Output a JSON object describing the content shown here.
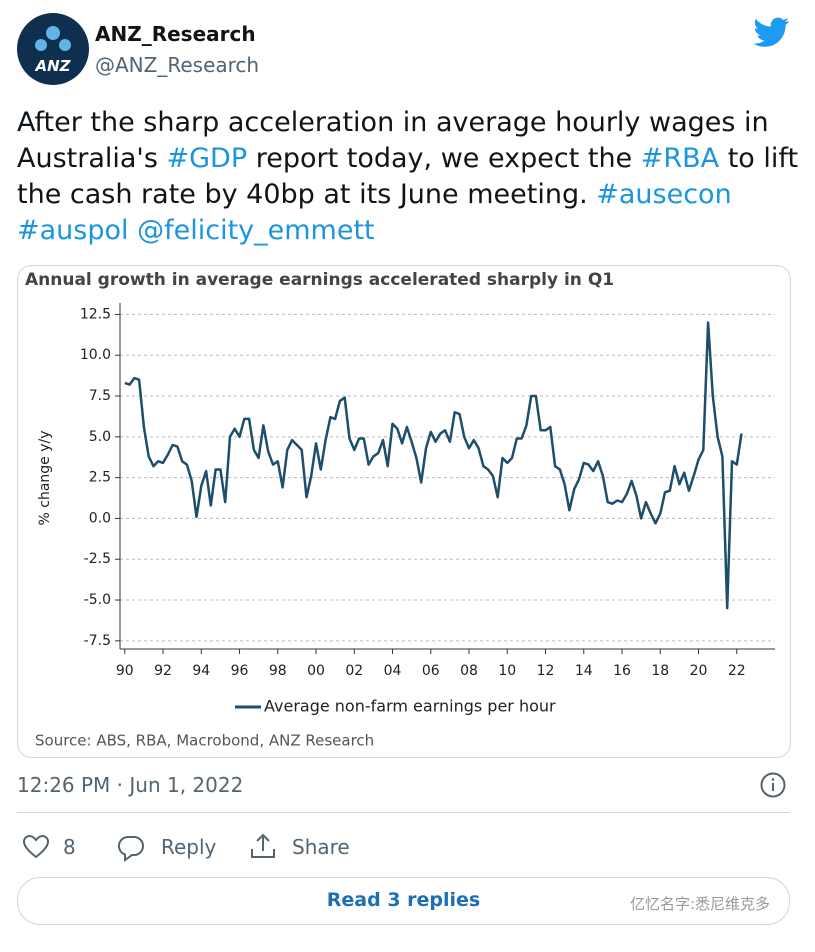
{
  "tweet": {
    "avatar_label": "ANZ",
    "name": "ANZ_Research",
    "handle": "@ANZ_Research",
    "text": [
      {
        "text": "After the sharp acceleration in average hourly wages in Australia's ",
        "link": false
      },
      {
        "text": "#GDP",
        "link": true
      },
      {
        "text": " report today, we expect the ",
        "link": false
      },
      {
        "text": "#RBA",
        "link": true
      },
      {
        "text": " to lift the cash rate by 40bp at its June meeting. ",
        "link": false
      },
      {
        "text": "#ausecon",
        "link": true
      },
      {
        "text": "#auspol",
        "link": true
      },
      {
        "text": "@felicity_emmett",
        "link": true
      }
    ],
    "timestamp": "12:26 PM · Jun 1, 2022",
    "likes": "8",
    "reply": "Reply",
    "share": "Share",
    "read_replies": "Read 3 replies",
    "watermark": "亿忆名字:悉尼维克多"
  },
  "chart_data": {
    "type": "line",
    "title": "Annual growth in average earnings accelerated sharply in Q1",
    "y_label": "% change y/y",
    "source": "Source: ABS, RBA, Macrobond, ANZ Research",
    "grid": true,
    "xlim": [
      1989.75,
      2024
    ],
    "ylim": [
      -8,
      13.2
    ],
    "xticks": [
      {
        "value": 1990,
        "label": "90"
      },
      {
        "value": 1992,
        "label": "92"
      },
      {
        "value": 1994,
        "label": "94"
      },
      {
        "value": 1996,
        "label": "96"
      },
      {
        "value": 1998,
        "label": "98"
      },
      {
        "value": 2000,
        "label": "00"
      },
      {
        "value": 2002,
        "label": "02"
      },
      {
        "value": 2004,
        "label": "04"
      },
      {
        "value": 2006,
        "label": "06"
      },
      {
        "value": 2008,
        "label": "08"
      },
      {
        "value": 2010,
        "label": "10"
      },
      {
        "value": 2012,
        "label": "12"
      },
      {
        "value": 2014,
        "label": "14"
      },
      {
        "value": 2016,
        "label": "16"
      },
      {
        "value": 2018,
        "label": "18"
      },
      {
        "value": 2020,
        "label": "20"
      },
      {
        "value": 2022,
        "label": "22"
      }
    ],
    "yticks": [
      12.5,
      {
        "value": 10,
        "label": "10.0"
      },
      7.5,
      {
        "value": 5,
        "label": "5.0"
      },
      2.5,
      {
        "value": 0,
        "label": "0.0"
      },
      -2.5,
      {
        "value": -5,
        "label": "-5.0"
      },
      -7.5
    ],
    "x": [
      1990,
      1990.25,
      1990.5,
      1990.75,
      1991,
      1991.25,
      1991.5,
      1991.75,
      1992,
      1992.25,
      1992.5,
      1992.75,
      1993,
      1993.25,
      1993.5,
      1993.75,
      1994,
      1994.25,
      1994.5,
      1994.75,
      1995,
      1995.25,
      1995.5,
      1995.75,
      1996,
      1996.25,
      1996.5,
      1996.75,
      1997,
      1997.25,
      1997.5,
      1997.75,
      1998,
      1998.25,
      1998.5,
      1998.75,
      1999,
      1999.25,
      1999.5,
      1999.75,
      2000,
      2000.25,
      2000.5,
      2000.75,
      2001,
      2001.25,
      2001.5,
      2001.75,
      2002,
      2002.25,
      2002.5,
      2002.75,
      2003,
      2003.25,
      2003.5,
      2003.75,
      2004,
      2004.25,
      2004.5,
      2004.75,
      2005,
      2005.25,
      2005.5,
      2005.75,
      2006,
      2006.25,
      2006.5,
      2006.75,
      2007,
      2007.25,
      2007.5,
      2007.75,
      2008,
      2008.25,
      2008.5,
      2008.75,
      2009,
      2009.25,
      2009.5,
      2009.75,
      2010,
      2010.25,
      2010.5,
      2010.75,
      2011,
      2011.25,
      2011.5,
      2011.75,
      2012,
      2012.25,
      2012.5,
      2012.75,
      2013,
      2013.25,
      2013.5,
      2013.75,
      2014,
      2014.25,
      2014.5,
      2014.75,
      2015,
      2015.25,
      2015.5,
      2015.75,
      2016,
      2016.25,
      2016.5,
      2016.75,
      2017,
      2017.25,
      2017.5,
      2017.75,
      2018,
      2018.25,
      2018.5,
      2018.75,
      2019,
      2019.25,
      2019.5,
      2019.75,
      2020,
      2020.25,
      2020.5,
      2020.75,
      2021,
      2021.25,
      2021.5,
      2021.75,
      2022,
      2022.25
    ],
    "series": [
      {
        "name": "Average non-farm earnings per hour",
        "color": "#1d4e6b",
        "values": [
          8.3,
          8.2,
          8.6,
          8.5,
          5.6,
          3.8,
          3.2,
          3.5,
          3.4,
          3.9,
          4.5,
          4.4,
          3.5,
          3.3,
          2.3,
          0.1,
          2.0,
          2.9,
          0.8,
          3.0,
          3.0,
          1.0,
          5.0,
          5.5,
          5.0,
          6.1,
          6.1,
          4.2,
          3.7,
          5.7,
          4.1,
          3.3,
          3.5,
          1.9,
          4.2,
          4.8,
          4.5,
          4.2,
          1.3,
          2.6,
          4.6,
          3.0,
          4.8,
          6.2,
          6.1,
          7.2,
          7.4,
          4.9,
          4.2,
          4.9,
          4.9,
          3.3,
          3.8,
          4.0,
          4.8,
          3.2,
          5.8,
          5.5,
          4.6,
          5.6,
          4.7,
          3.7,
          2.2,
          4.3,
          5.3,
          4.7,
          5.2,
          5.4,
          4.7,
          6.5,
          6.4,
          5.0,
          4.3,
          4.8,
          4.3,
          3.2,
          3.0,
          2.6,
          1.3,
          3.7,
          3.4,
          3.7,
          4.9,
          4.9,
          5.7,
          7.5,
          7.5,
          5.4,
          5.4,
          5.6,
          3.2,
          3.0,
          2.1,
          0.5,
          1.8,
          2.4,
          3.4,
          3.3,
          2.9,
          3.5,
          2.6,
          1.0,
          0.9,
          1.1,
          1.0,
          1.5,
          2.3,
          1.4,
          0.0,
          1.0,
          0.3,
          -0.3,
          0.3,
          1.6,
          1.7,
          3.2,
          2.1,
          2.8,
          1.7,
          2.6,
          3.6,
          4.2,
          12.0,
          7.5,
          5.0,
          3.8,
          -5.5,
          3.5,
          3.3,
          5.2
        ]
      }
    ]
  }
}
